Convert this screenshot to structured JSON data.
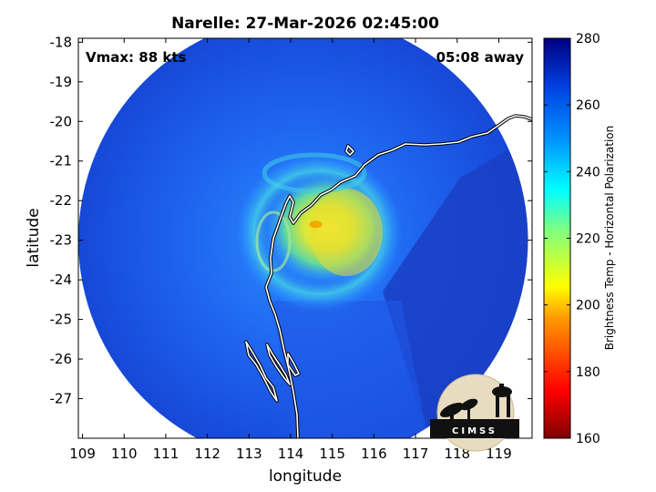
{
  "chart_data": {
    "type": "heatmap",
    "title": "Narelle: 27-Mar-2026 02:45:00",
    "xlabel": "longitude",
    "ylabel": "latitude",
    "xlim": [
      108.9,
      119.8
    ],
    "ylim": [
      -28.0,
      -17.9
    ],
    "xticks": [
      109,
      110,
      111,
      112,
      113,
      114,
      115,
      116,
      117,
      118,
      119
    ],
    "yticks": [
      -18,
      -19,
      -20,
      -21,
      -22,
      -23,
      -24,
      -25,
      -26,
      -27
    ],
    "annotations": {
      "vmax": "Vmax: 88 kts",
      "time_offset": "05:08 away"
    },
    "colorbar": {
      "label": "Brightness Temp - Horizontal Polarization",
      "range": [
        160,
        280
      ],
      "ticks": [
        160,
        180,
        200,
        220,
        240,
        260,
        280
      ]
    },
    "swath": {
      "center": [
        114.3,
        -23.0
      ],
      "radius_deg": 5.4
    },
    "storm_center": [
      114.6,
      -22.6
    ],
    "logo_text": "CIMSS",
    "colors": {
      "background_field": "#1f55e6",
      "warm_band": "#2a90ff",
      "cold_core": "#f2d21a",
      "coastline": "#ffffff"
    }
  }
}
